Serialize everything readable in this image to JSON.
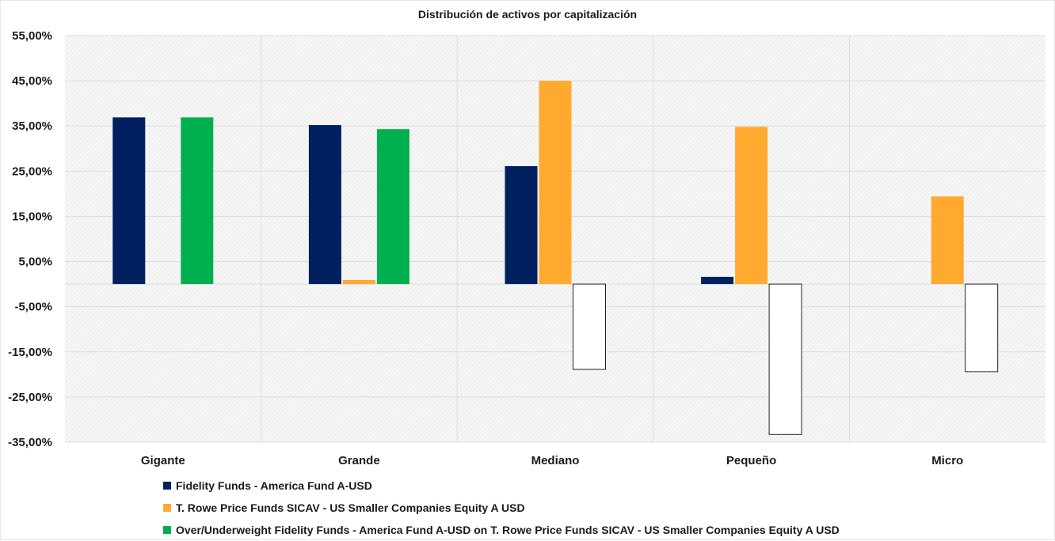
{
  "chart_data": {
    "type": "bar",
    "title": "Distribución de activos por capitalización",
    "categories": [
      "Gigante",
      "Grande",
      "Mediano",
      "Pequeño",
      "Micro"
    ],
    "series": [
      {
        "name": "Fidelity Funds - America Fund A-USD",
        "color": "#002060",
        "values": [
          36.9,
          35.2,
          26.1,
          1.6,
          0.0
        ]
      },
      {
        "name": "T. Rowe Price Funds SICAV - US Smaller Companies Equity A USD",
        "color": "#FFA92F",
        "values": [
          0.0,
          0.9,
          45.0,
          34.8,
          19.4
        ]
      },
      {
        "name": "Over/Underweight Fidelity Funds - America Fund A-USD on T. Rowe Price Funds SICAV - US Smaller Companies Equity A USD",
        "color": "#00B050",
        "negative_color": "#FFFFFF",
        "values": [
          36.9,
          34.3,
          -18.9,
          -33.3,
          -19.4
        ]
      }
    ],
    "ylim": [
      -35,
      55
    ],
    "yticks": [
      "55,00%",
      "45,00%",
      "35,00%",
      "25,00%",
      "15,00%",
      "5,00%",
      "-5,00%",
      "-15,00%",
      "-25,00%",
      "-35,00%"
    ],
    "ytick_values": [
      55,
      45,
      35,
      25,
      15,
      5,
      -5,
      -15,
      -25,
      -35
    ],
    "xlabel": "",
    "ylabel": "",
    "grid": true,
    "legend": "bottom"
  }
}
